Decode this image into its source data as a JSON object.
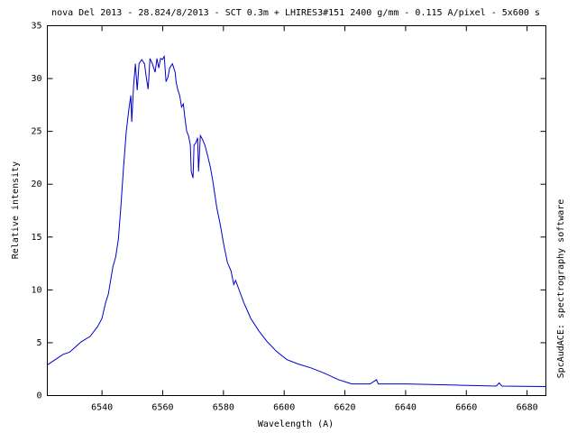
{
  "chart_data": {
    "type": "line",
    "title": "nova Del 2013 - 28.824/8/2013 - SCT 0.3m + LHIRES3#151 2400 g/mm - 0.115 A/pixel - 5x600 s",
    "x_label": "Wavelength (A)",
    "y_label": "Relative intensity",
    "side_text": "SpcAudACE: spectrography software",
    "xlim": [
      6522,
      6686.2
    ],
    "ylim": [
      0,
      35
    ],
    "xticks": [
      6540,
      6560,
      6580,
      6600,
      6620,
      6640,
      6660,
      6680
    ],
    "yticks": [
      0,
      5,
      10,
      15,
      20,
      25,
      30,
      35
    ],
    "grid": false,
    "x": [
      6522,
      6527.2,
      6529.3,
      6533.2,
      6536.1,
      6538.5,
      6540,
      6541.2,
      6542.1,
      6543.6,
      6544.5,
      6545.4,
      6546.2,
      6547.1,
      6548,
      6548.9,
      6549.5,
      6549.8,
      6550.4,
      6551,
      6551.6,
      6552.2,
      6553.1,
      6554,
      6554.6,
      6555.2,
      6555.8,
      6556.6,
      6557.5,
      6558.1,
      6558.7,
      6559.3,
      6559.9,
      6560.5,
      6561.1,
      6561.7,
      6562.3,
      6563.2,
      6564.1,
      6564.4,
      6565,
      6565.6,
      6566.2,
      6566.8,
      6567.3,
      6567.9,
      6568.5,
      6569.1,
      6569.4,
      6570,
      6570.3,
      6570.9,
      6571.5,
      6571.8,
      6572.4,
      6573,
      6573.9,
      6574.8,
      6575.7,
      6576.5,
      6577.8,
      6579,
      6580.1,
      6581.3,
      6582.5,
      6583.4,
      6584,
      6584.9,
      6586.7,
      6589,
      6591.7,
      6594.4,
      6597.4,
      6600.9,
      6604.5,
      6609,
      6613.4,
      6617.9,
      6622.3,
      6628.3,
      6630.4,
      6631,
      6640.2,
      6655,
      6669.9,
      6670.8,
      6671.7,
      6686.2
    ],
    "series": [
      {
        "color": "#0000cc",
        "values": [
          2.9,
          3.9,
          4.1,
          5.1,
          5.6,
          6.5,
          7.3,
          8.8,
          9.6,
          12.2,
          13.1,
          14.8,
          17.8,
          21.6,
          25.0,
          27.2,
          28.4,
          25.9,
          29.3,
          31.4,
          28.9,
          31.4,
          31.8,
          31.4,
          30.1,
          29.0,
          31.9,
          31.4,
          30.6,
          31.9,
          31.0,
          31.9,
          31.8,
          32.1,
          29.7,
          30.1,
          31.0,
          31.4,
          30.6,
          29.7,
          28.9,
          28.4,
          27.3,
          27.6,
          26.3,
          25.0,
          24.6,
          23.7,
          21.2,
          20.6,
          23.7,
          23.9,
          24.4,
          21.2,
          24.6,
          24.3,
          23.7,
          22.7,
          21.6,
          20.3,
          17.8,
          16.1,
          14.3,
          12.6,
          11.8,
          10.5,
          10.9,
          10.2,
          8.8,
          7.3,
          6.1,
          5.1,
          4.2,
          3.4,
          3.0,
          2.6,
          2.1,
          1.5,
          1.1,
          1.1,
          1.5,
          1.1,
          1.1,
          1.0,
          0.9,
          1.2,
          0.9,
          0.85
        ]
      }
    ]
  }
}
